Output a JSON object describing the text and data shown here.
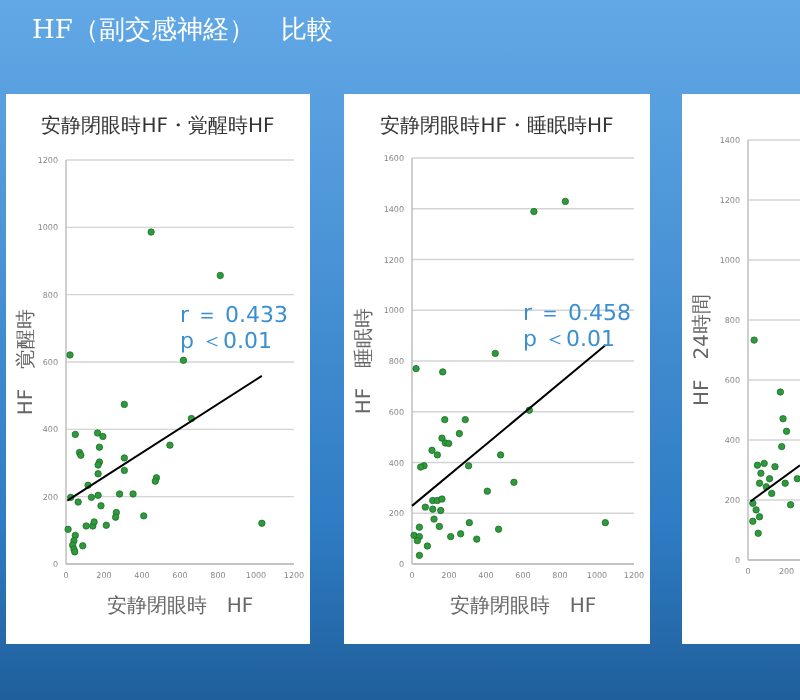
{
  "chart_data": [
    {
      "type": "scatter",
      "title": "安静閉眼時HF・覚醒時HF",
      "xlabel": "安静閉眼時　HF",
      "ylabel": "HF　覚醒時",
      "annotations": [
        "HF（副交感神経）　比較",
        "r ＝ 0.433",
        "p ＜0.01"
      ],
      "xlim": [
        0,
        1200
      ],
      "ylim": [
        0,
        1200
      ],
      "xticks": [
        0,
        200,
        400,
        600,
        800,
        1000,
        1200
      ],
      "yticks": [
        0,
        200,
        400,
        600,
        800,
        1000,
        1200
      ],
      "grid": "y",
      "series": [
        {
          "marker": "circle",
          "color": "#2e9a3c",
          "x": [
            448,
            812,
            21,
            618,
            307,
            660,
            49,
            166,
            194,
            71,
            78,
            176,
            547,
            307,
            176,
            169,
            169,
            307,
            476,
            470,
            25,
            64,
            116,
            169,
            282,
            353,
            134,
            265,
            261,
            184,
            409,
            212,
            141,
            148,
            106,
            11,
            49,
            42,
            35,
            42,
            88,
            46,
            1031
          ],
          "values": [
            986,
            857,
            621,
            605,
            474,
            432,
            385,
            389,
            379,
            331,
            323,
            347,
            353,
            315,
            303,
            294,
            268,
            278,
            256,
            246,
            198,
            184,
            234,
            204,
            208,
            208,
            198,
            153,
            139,
            173,
            143,
            115,
            113,
            125,
            113,
            103,
            85,
            69,
            56,
            44,
            54,
            36,
            121
          ]
        },
        {
          "type": "line",
          "color": "#000000",
          "x": [
            7,
            1031
          ],
          "values": [
            188,
            559
          ]
        }
      ]
    },
    {
      "type": "scatter",
      "title": "安静閉眼時HF・睡眠時HF",
      "xlabel": "安静閉眼時　HF",
      "ylabel": "HF　睡眠時",
      "annotations": [
        "r ＝ 0.458",
        "p ＜0.01"
      ],
      "xlim": [
        0,
        1200
      ],
      "ylim": [
        0,
        1600
      ],
      "xticks": [
        0,
        200,
        400,
        600,
        800,
        1000,
        1200
      ],
      "yticks": [
        0,
        200,
        400,
        600,
        800,
        1000,
        1200,
        1400,
        1600
      ],
      "grid": "y",
      "series": [
        {
          "marker": "circle",
          "color": "#2e9a3c",
          "x": [
            659,
            829,
            22,
            166,
            450,
            634,
            177,
            288,
            256,
            162,
            180,
            198,
            108,
            137,
            65,
            47,
            306,
            479,
            551,
            407,
            112,
            137,
            162,
            72,
            112,
            155,
            119,
            310,
            148,
            40,
            11,
            40,
            29,
            209,
            263,
            350,
            468,
            83,
            40,
            1045
          ],
          "values": [
            1389,
            1429,
            770,
            757,
            830,
            606,
            569,
            569,
            514,
            496,
            477,
            475,
            448,
            430,
            387,
            382,
            387,
            430,
            322,
            287,
            250,
            250,
            256,
            224,
            216,
            211,
            177,
            163,
            148,
            145,
            113,
            108,
            92,
            108,
            119,
            98,
            137,
            71,
            34,
            163
          ]
        },
        {
          "type": "line",
          "color": "#000000",
          "x": [
            0,
            1045
          ],
          "values": [
            229,
            862
          ]
        }
      ]
    },
    {
      "type": "scatter",
      "xlabel": null,
      "ylabel": "HF　24時間",
      "xlim": [
        0,
        270
      ],
      "ylim": [
        0,
        1400
      ],
      "xticks": [
        0,
        200
      ],
      "yticks": [
        0,
        200,
        400,
        600,
        800,
        1000,
        1200,
        1400
      ],
      "grid": "y",
      "series": [
        {
          "marker": "circle",
          "color": "#2e9a3c",
          "x": [
            32,
            168,
            182,
            200,
            175,
            84,
            49,
            67,
            140,
            112,
            60,
            95,
            123,
            25,
            42,
            60,
            25,
            53,
            256,
            221,
            193
          ],
          "values": [
            733,
            560,
            471,
            429,
            378,
            322,
            316,
            289,
            311,
            271,
            256,
            244,
            222,
            189,
            167,
            144,
            129,
            89,
            271,
            184,
            256
          ]
        },
        {
          "type": "line",
          "color": "#000000",
          "x": [
            14,
            270
          ],
          "values": [
            196,
            316
          ]
        }
      ]
    }
  ]
}
